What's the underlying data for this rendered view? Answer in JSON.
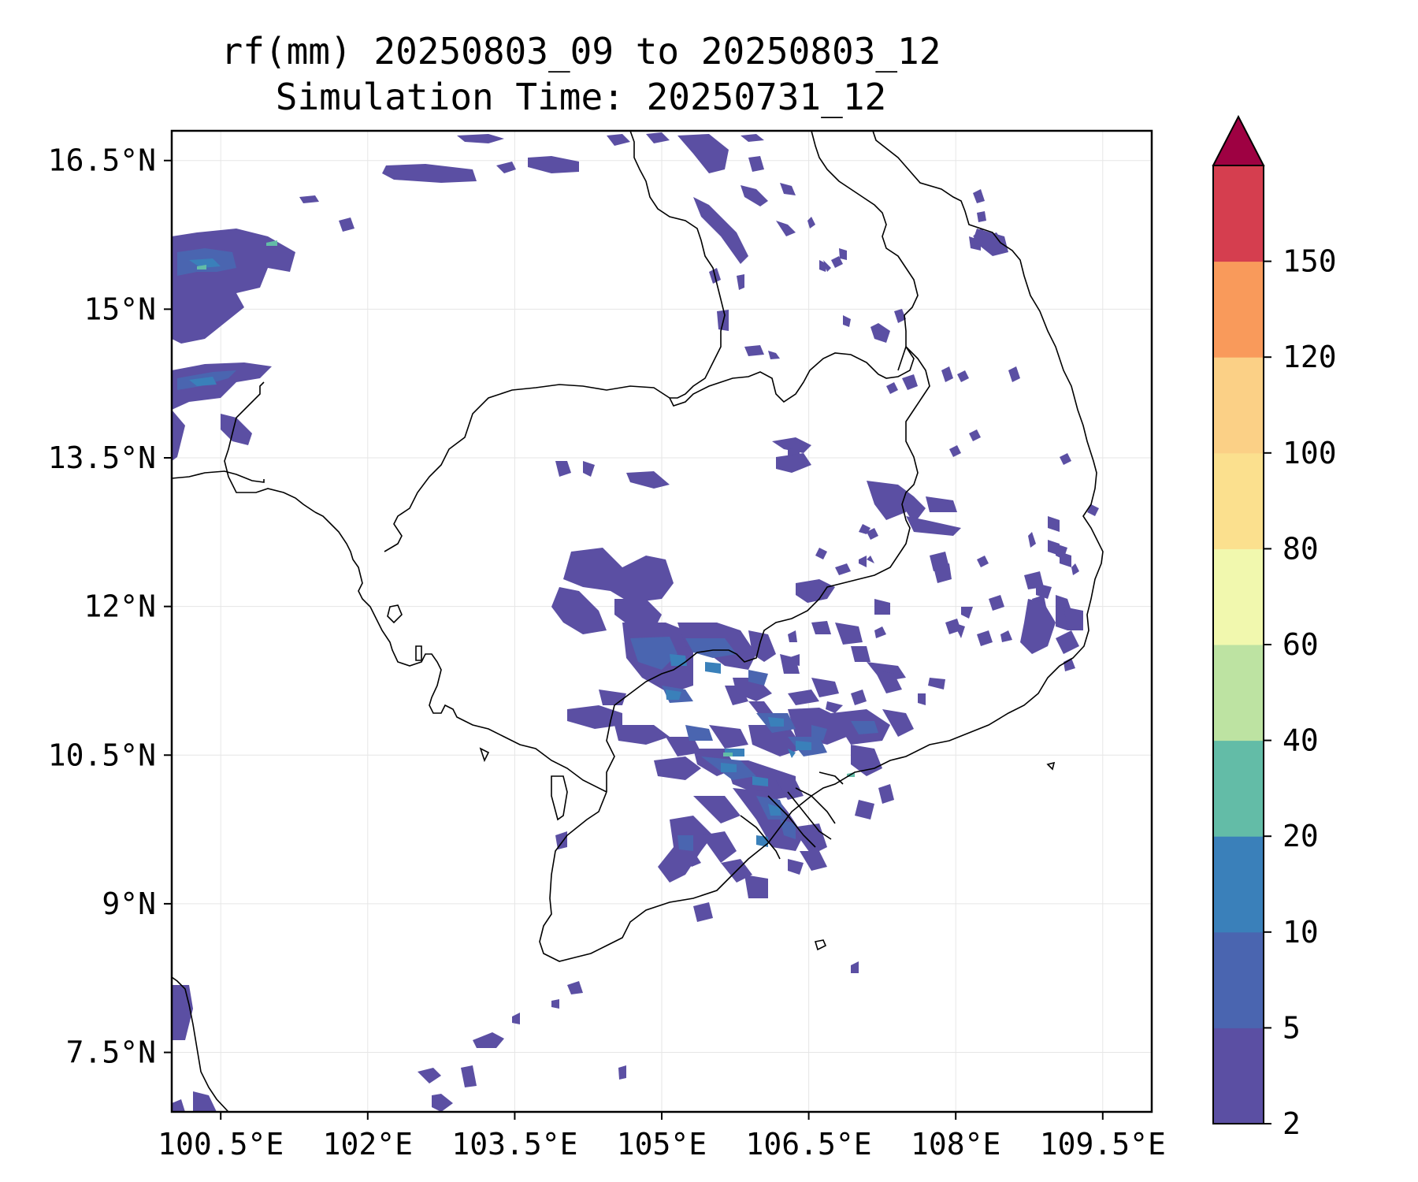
{
  "title": {
    "line1": "rf(mm) 20250803_09 to 20250803_12",
    "line2": "Simulation Time: 20250731_12"
  },
  "map": {
    "region": "Mainland Southeast Asia (Cambodia / southern Vietnam / Gulf of Thailand)",
    "lon_range": [
      100.0,
      110.0
    ],
    "lat_range": [
      6.9,
      16.8
    ],
    "grid": true,
    "x_ticks": [
      100.5,
      102.0,
      103.5,
      105.0,
      106.5,
      108.0,
      109.5
    ],
    "x_tick_labels": [
      "100.5°E",
      "102°E",
      "103.5°E",
      "105°E",
      "106.5°E",
      "108°E",
      "109.5°E"
    ],
    "y_ticks": [
      16.5,
      15.0,
      13.5,
      12.0,
      10.5,
      9.0,
      7.5
    ],
    "y_tick_labels": [
      "16.5°N",
      "15°N",
      "13.5°N",
      "12°N",
      "10.5°N",
      "9°N",
      "7.5°N"
    ]
  },
  "colorbar": {
    "levels": [
      2,
      5,
      10,
      20,
      40,
      60,
      80,
      100,
      120,
      150
    ],
    "labels": [
      "2",
      "5",
      "10",
      "20",
      "40",
      "60",
      "80",
      "100",
      "120",
      "150"
    ],
    "colors": [
      "#5b4fa3",
      "#4a65b0",
      "#3a80ba",
      "#63bca7",
      "#bde3a2",
      "#f1f8ae",
      "#fbe08e",
      "#fbd086",
      "#f99a5b",
      "#d53e4f"
    ],
    "extend_color": "#9e0142",
    "extend": "max"
  },
  "rain_colors": {
    "low": "#5b4fa3",
    "mid": "#3a80ba",
    "high": "#63bca7"
  }
}
